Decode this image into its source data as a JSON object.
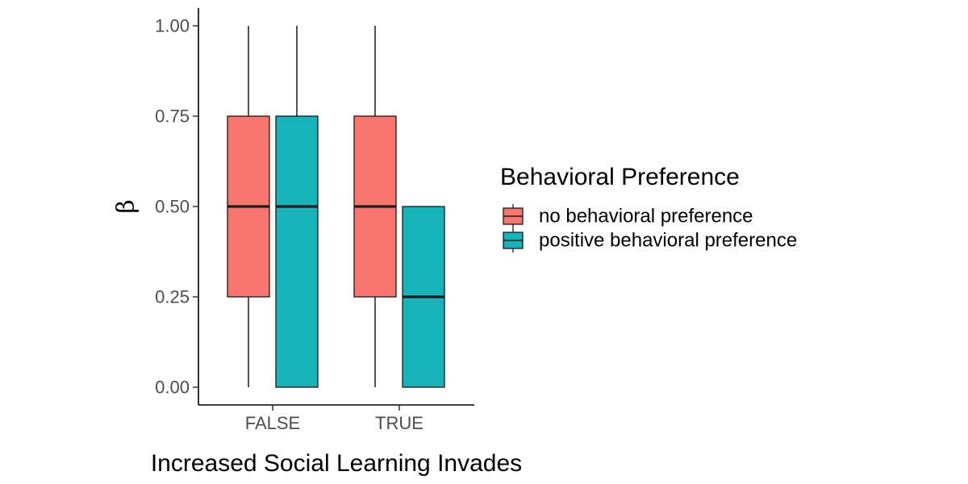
{
  "chart_data": {
    "type": "box",
    "title": "",
    "xlabel": "Increased Social Learning Invades",
    "ylabel": "β",
    "ylim": [
      0,
      1
    ],
    "yticks": [
      0,
      0.25,
      0.5,
      0.75,
      1
    ],
    "ytick_labels": [
      "0.00",
      "0.25",
      "0.50",
      "0.75",
      "1.00"
    ],
    "categories": [
      "FALSE",
      "TRUE"
    ],
    "legend": {
      "title": "Behavioral Preference",
      "position": "right"
    },
    "series": [
      {
        "name": "no behavioral preference",
        "color": "#F8766D",
        "boxes": [
          {
            "category": "FALSE",
            "min": 0,
            "q1": 0.25,
            "median": 0.5,
            "q3": 0.75,
            "max": 1.0
          },
          {
            "category": "TRUE",
            "min": 0,
            "q1": 0.25,
            "median": 0.5,
            "q3": 0.75,
            "max": 1.0
          }
        ]
      },
      {
        "name": "positive behavioral preference",
        "color": "#17B3B8",
        "boxes": [
          {
            "category": "FALSE",
            "min": 0,
            "q1": 0,
            "median": 0.5,
            "q3": 0.75,
            "max": 1.0
          },
          {
            "category": "TRUE",
            "min": 0,
            "q1": 0,
            "median": 0.25,
            "q3": 0.5,
            "max": 0.5
          }
        ]
      }
    ]
  }
}
